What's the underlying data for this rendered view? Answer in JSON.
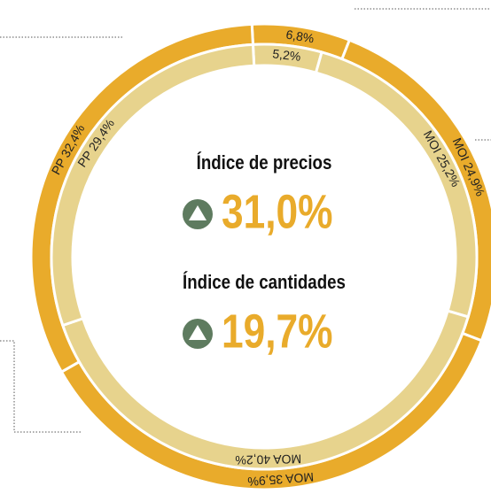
{
  "chart_data": {
    "type": "donut",
    "series": [
      {
        "color": "#e9ab2b",
        "values": [
          6.8,
          24.9,
          35.9,
          32.4
        ],
        "value_labels": [
          "6,8%",
          "MOI 24,9%",
          "MOA 35,9%",
          "PP 32,4%"
        ]
      },
      {
        "color": "#e7d38d",
        "values": [
          5.2,
          25.2,
          40.2,
          29.4
        ],
        "value_labels": [
          "5,2%",
          "MOI 25,2%",
          "MOA 40,2%",
          "PP 29,4%"
        ]
      }
    ],
    "annotations": [
      {
        "title": "Índice de precios",
        "value": "31,0%"
      },
      {
        "title": "Índice de cantidades",
        "value": "19,7%"
      }
    ]
  }
}
